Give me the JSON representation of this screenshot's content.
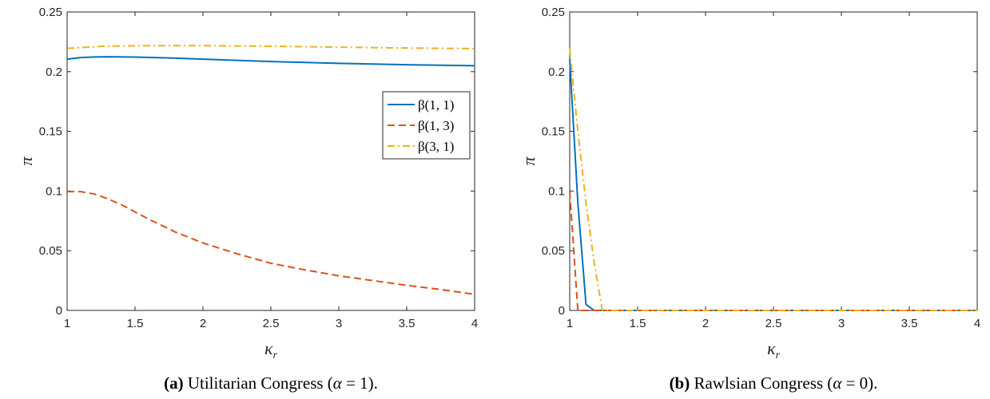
{
  "chart_data": [
    {
      "type": "line",
      "panel_label": "(a)",
      "caption_text": "Utilitarian Congress (",
      "caption_alpha": "α",
      "caption_value": " = 1).",
      "xlabel": "κ",
      "xlabel_sub": "r",
      "ylabel": "π",
      "xlim": [
        1,
        4
      ],
      "ylim": [
        0,
        0.25
      ],
      "xticks": [
        "1",
        "1.5",
        "2",
        "2.5",
        "3",
        "3.5",
        "4"
      ],
      "yticks": [
        "0",
        "0.05",
        "0.1",
        "0.15",
        "0.2",
        "0.25"
      ],
      "grid": false,
      "legend_position": "right",
      "series": [
        {
          "name": "β(1, 1)",
          "color": "#0072BD",
          "dash": "solid",
          "x": [
            1,
            1.1,
            1.2,
            1.3,
            1.5,
            1.75,
            2,
            2.5,
            3,
            3.5,
            4
          ],
          "y": [
            0.2105,
            0.2118,
            0.2123,
            0.2125,
            0.2122,
            0.2115,
            0.2105,
            0.2085,
            0.207,
            0.2058,
            0.205
          ]
        },
        {
          "name": "β(1, 3)",
          "color": "#D95319",
          "dash": "dashed",
          "x": [
            1,
            1.1,
            1.2,
            1.3,
            1.4,
            1.5,
            1.6,
            1.8,
            2,
            2.25,
            2.5,
            2.75,
            3,
            3.25,
            3.5,
            3.75,
            4
          ],
          "y": [
            0.0995,
            0.0995,
            0.0975,
            0.0935,
            0.0885,
            0.0825,
            0.0765,
            0.0655,
            0.0565,
            0.0475,
            0.0395,
            0.034,
            0.029,
            0.025,
            0.021,
            0.0175,
            0.0135
          ]
        },
        {
          "name": "β(3, 1)",
          "color": "#EDB120",
          "dash": "dashdot",
          "x": [
            1,
            1.25,
            1.5,
            2,
            2.5,
            3,
            3.5,
            4
          ],
          "y": [
            0.2195,
            0.2212,
            0.2217,
            0.2218,
            0.2213,
            0.2205,
            0.2198,
            0.2193
          ]
        }
      ]
    },
    {
      "type": "line",
      "panel_label": "(b)",
      "caption_text": "Rawlsian Congress (",
      "caption_alpha": "α",
      "caption_value": " = 0).",
      "xlabel": "κ",
      "xlabel_sub": "r",
      "ylabel": "π",
      "xlim": [
        1,
        4
      ],
      "ylim": [
        0,
        0.25
      ],
      "xticks": [
        "1",
        "1.5",
        "2",
        "2.5",
        "3",
        "3.5",
        "4"
      ],
      "yticks": [
        "0",
        "0.05",
        "0.1",
        "0.15",
        "0.2",
        "0.25"
      ],
      "grid": false,
      "legend_position": "none",
      "series": [
        {
          "name": "β(1, 1)",
          "color": "#0072BD",
          "dash": "solid",
          "x": [
            1,
            1.06,
            1.12,
            1.18,
            4
          ],
          "y": [
            0.2105,
            0.09,
            0.005,
            0,
            0
          ]
        },
        {
          "name": "β(1, 3)",
          "color": "#D95319",
          "dash": "dashed",
          "x": [
            1,
            1.03,
            1.06,
            4
          ],
          "y": [
            0.0995,
            0.05,
            0,
            0
          ]
        },
        {
          "name": "β(3, 1)",
          "color": "#EDB120",
          "dash": "dashdot",
          "x": [
            1,
            1.06,
            1.12,
            1.18,
            1.24,
            4
          ],
          "y": [
            0.2195,
            0.15,
            0.09,
            0.04,
            0,
            0
          ]
        }
      ]
    }
  ]
}
